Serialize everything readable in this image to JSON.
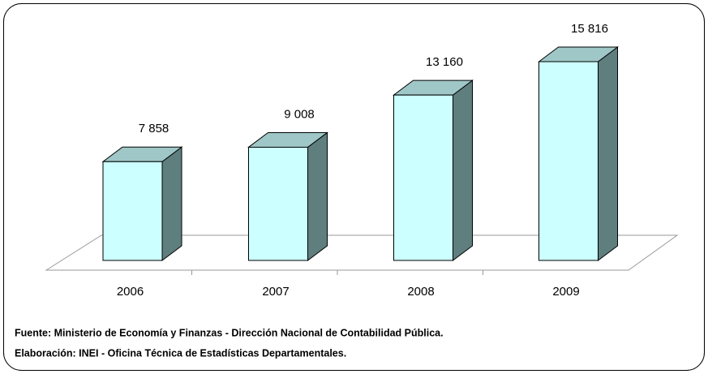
{
  "chart_data": {
    "type": "bar",
    "categories": [
      "2006",
      "2007",
      "2008",
      "2009"
    ],
    "values": [
      7858,
      9008,
      13160,
      15816
    ],
    "value_labels": [
      "7 858",
      "9 008",
      "13 160",
      "15 816"
    ],
    "color": "#ccffff",
    "notes": [
      "Fuente: Ministerio de Economía y Finanzas - Dirección Nacional de Contabilidad Pública.",
      "Elaboración: INEI - Oficina Técnica de Estadísticas Departamentales."
    ]
  }
}
